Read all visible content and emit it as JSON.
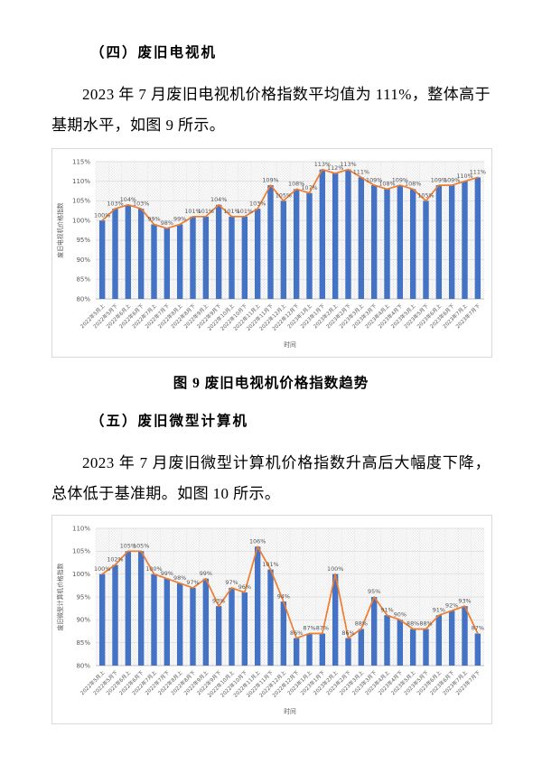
{
  "document": {
    "section4": {
      "heading": "（四）废旧电视机",
      "paragraph": "2023 年 7 月废旧电视机价格指数平均值为 111%，整体高于基期水平，如图 9 所示。",
      "figure_caption": "图 9 废旧电视机价格指数趋势"
    },
    "section5": {
      "heading": "（五）废旧微型计算机",
      "paragraph": "2023 年 7 月废旧微型计算机价格指数升高后大幅度下降，总体低于基准期。如图 10 所示。"
    }
  },
  "chart_data": [
    {
      "type": "bar",
      "line_overlay": true,
      "title": "",
      "categories": [
        "2022年5月上",
        "2022年5月下",
        "2022年6月上",
        "2022年6月下",
        "2022年7月上",
        "2022年7月下",
        "2022年8月上",
        "2022年8月下",
        "2022年9月上",
        "2022年9月下",
        "2022年10月上",
        "2022年10月下",
        "2022年11月上",
        "2022年11月下",
        "2022年12月上",
        "2022年12月下",
        "2023年1月上",
        "2023年1月下",
        "2023年2月上",
        "2023年2月下",
        "2023年3月上",
        "2023年3月下",
        "2023年4月上",
        "2023年4月下",
        "2023年5月上",
        "2023年5月下",
        "2023年6月上",
        "2023年6月下",
        "2023年7月上",
        "2023年7月下"
      ],
      "values": [
        100,
        103,
        104,
        103,
        99,
        98,
        99,
        101,
        101,
        104,
        101,
        101,
        103,
        109,
        105,
        108,
        107,
        113,
        112,
        113,
        111,
        109,
        108,
        109,
        108,
        105,
        109,
        109,
        110,
        111
      ],
      "xlabel": "时间",
      "ylabel": "废旧电视机价格指数",
      "ylim": [
        80,
        115
      ],
      "ystep": 5,
      "yticks": [
        "80%",
        "85%",
        "90%",
        "95%",
        "100%",
        "105%",
        "110%",
        "115%"
      ],
      "legend": "none",
      "grid": true,
      "bar_color": "#4472C4",
      "line_color": "#ED7D31",
      "label_color": "#595959"
    },
    {
      "type": "bar",
      "line_overlay": true,
      "title": "",
      "categories": [
        "2022年5月上",
        "2022年5月下",
        "2022年6月上",
        "2022年6月下",
        "2022年7月上",
        "2022年7月下",
        "2022年8月上",
        "2022年8月下",
        "2022年9月上",
        "2022年9月下",
        "2022年10月上",
        "2022年10月下",
        "2022年11月上",
        "2022年11月下",
        "2022年12月上",
        "2022年12月下",
        "2023年1月上",
        "2023年1月下",
        "2023年2月上",
        "2023年2月下",
        "2023年3月上",
        "2023年3月下",
        "2023年4月上",
        "2023年4月下",
        "2023年5月上",
        "2023年5月下",
        "2023年6月上",
        "2023年6月下",
        "2023年7月上",
        "2023年7月下"
      ],
      "values": [
        100,
        102,
        105,
        105,
        100,
        99,
        98,
        97,
        99,
        93,
        97,
        96,
        106,
        101,
        94,
        86,
        87,
        87,
        100,
        86,
        88,
        95,
        91,
        90,
        88,
        88,
        91,
        92,
        93,
        87
      ],
      "xlabel": "时间",
      "ylabel": "废旧微型计算机价格指数",
      "ylim": [
        80,
        110
      ],
      "ystep": 5,
      "yticks": [
        "80%",
        "85%",
        "90%",
        "95%",
        "100%",
        "105%",
        "110%"
      ],
      "legend": "none",
      "grid": true,
      "bar_color": "#4472C4",
      "line_color": "#ED7D31",
      "label_color": "#595959"
    }
  ]
}
